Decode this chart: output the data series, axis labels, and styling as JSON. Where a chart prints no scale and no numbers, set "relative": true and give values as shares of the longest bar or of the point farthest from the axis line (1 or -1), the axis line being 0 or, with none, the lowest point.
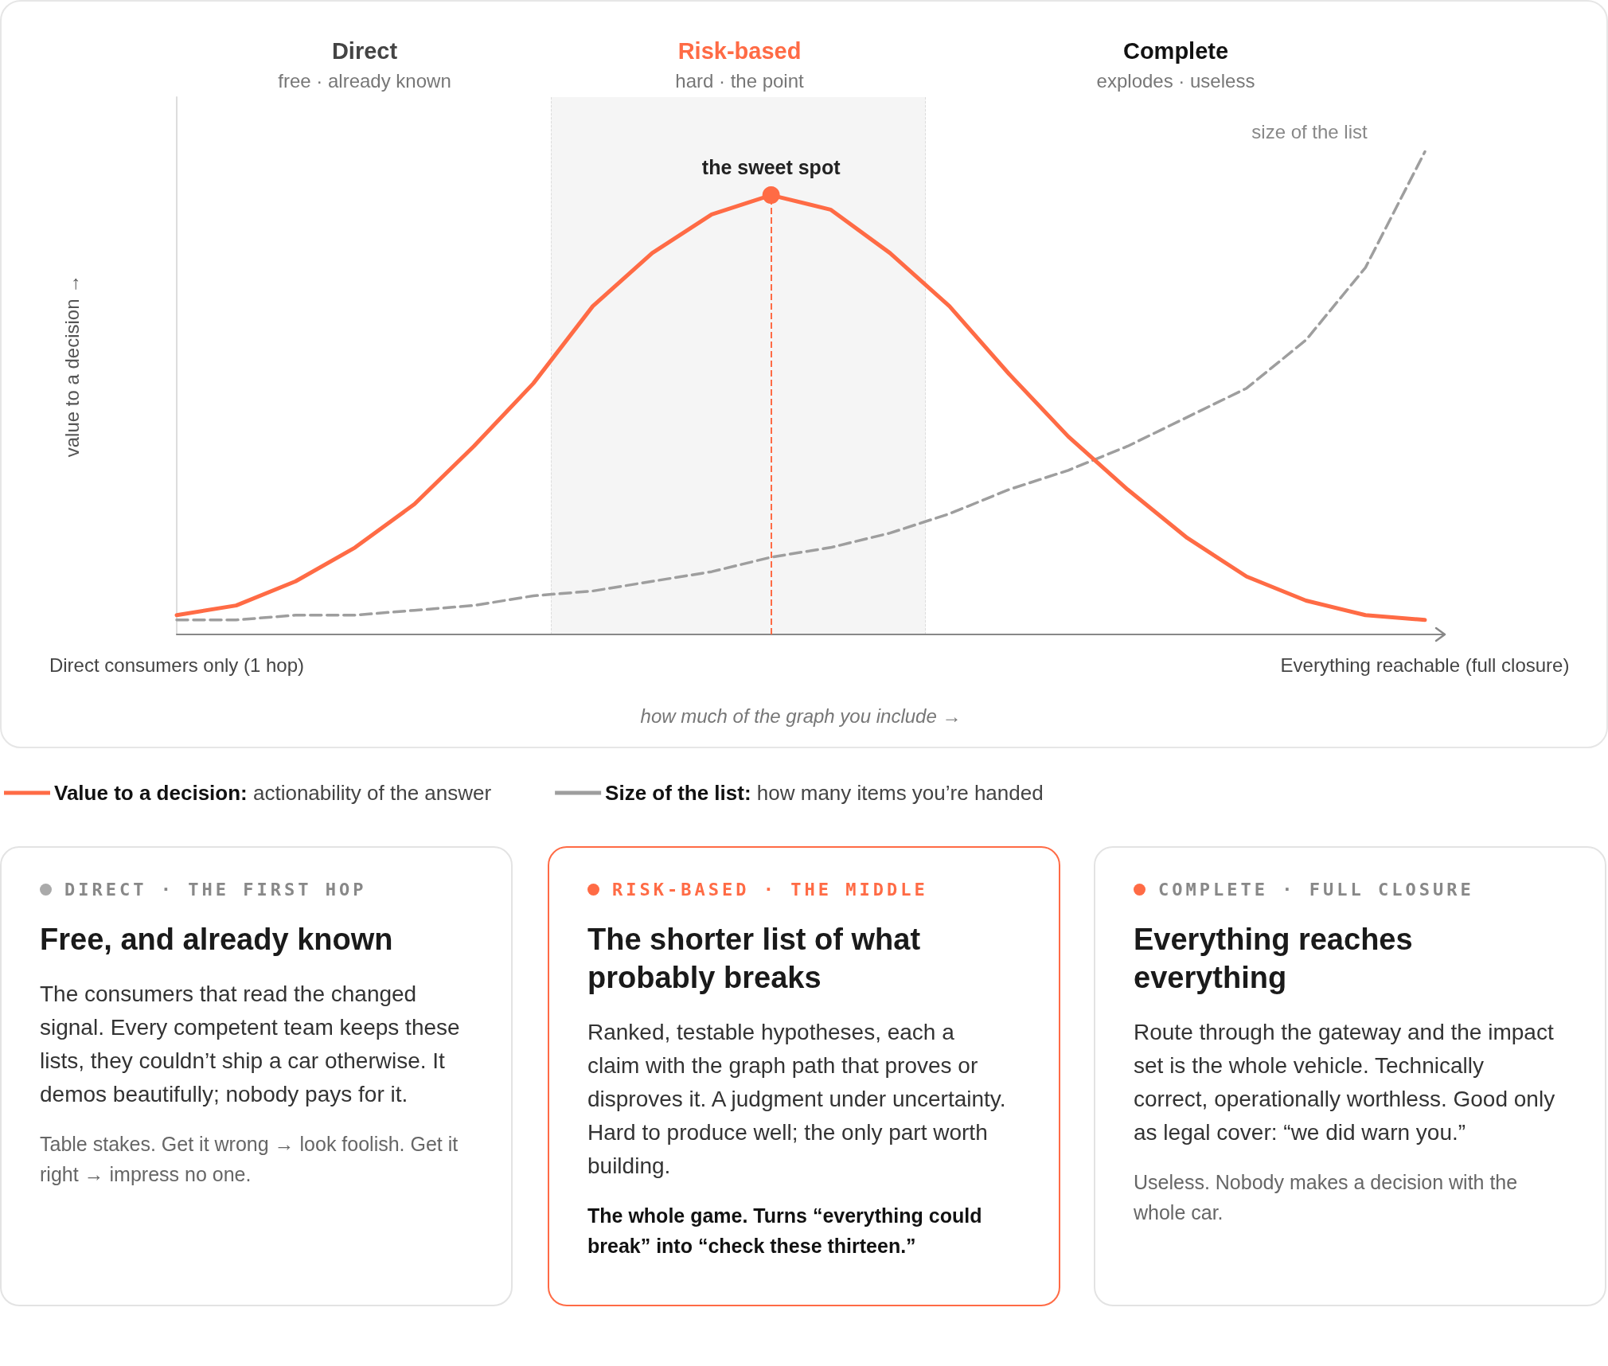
{
  "chart_data": [
    {
      "type": "line",
      "relative": true,
      "xlabel": "how much of the graph you include →",
      "ylabel": "value to a decision →",
      "categories": [
        "Direct consumers only (1 hop)",
        null,
        null,
        null,
        null,
        null,
        null,
        null,
        null,
        null,
        null,
        null,
        null,
        null,
        null,
        null,
        null,
        null,
        null,
        null,
        null,
        "Everything reachable (full closure)"
      ],
      "tick_labels": "x",
      "grid": false,
      "marker": "none",
      "legend": "bottom",
      "series": [
        {
          "name": "Value to a decision: actionability of the answer",
          "color": "#ff6b45",
          "line_style": "solid",
          "values": [
            0.04,
            0.06,
            0.11,
            0.18,
            0.27,
            0.39,
            0.52,
            0.68,
            0.79,
            0.87,
            0.91,
            0.88,
            0.79,
            0.68,
            0.54,
            0.41,
            0.3,
            0.2,
            0.12,
            0.07,
            0.04,
            0.03
          ]
        },
        {
          "name": "Size of the list: how many items you’re handed",
          "color": "#9e9e9e",
          "line_style": "dashed",
          "values": [
            0.03,
            0.03,
            0.04,
            0.04,
            0.05,
            0.06,
            0.08,
            0.09,
            0.11,
            0.13,
            0.16,
            0.18,
            0.21,
            0.25,
            0.3,
            0.34,
            0.39,
            0.45,
            0.51,
            0.61,
            0.76,
            1
          ]
        }
      ],
      "annotations": [
        "Direct",
        "free · already known",
        "Risk-based",
        "hard · the point",
        "Complete",
        "explodes · useless",
        "the sweet spot",
        "size of the list"
      ]
    },
    {
      "type": "other",
      "subtitle": "DIRECT · THE FIRST HOP",
      "title": "Free, and already known",
      "annotations": [
        "The consumers that read the changed signal. Every competent team keeps these lists, they couldn’t ship a car otherwise. It demos beautifully; nobody pays for it.",
        "Table stakes. Get it wrong → look foolish. Get it right → impress no one."
      ]
    },
    {
      "type": "other",
      "subtitle": "RISK-BASED · THE MIDDLE",
      "title": "The shorter list of what probably breaks",
      "annotations": [
        "Ranked, testable hypotheses, each a claim with the graph path that proves or disproves it. A judgment under uncertainty. Hard to produce well; the only part worth building.",
        "The whole game. Turns “everything could break” into “check these thirteen.”"
      ]
    },
    {
      "type": "other",
      "subtitle": "COMPLETE · FULL CLOSURE",
      "title": "Everything reaches everything",
      "annotations": [
        "Route through the gateway and the impact set is the whole vehicle. Technically correct, operationally worthless. Good only as legal cover: “we did warn you.”",
        "Useless. Nobody makes a decision with the whole car."
      ]
    }
  ]
}
